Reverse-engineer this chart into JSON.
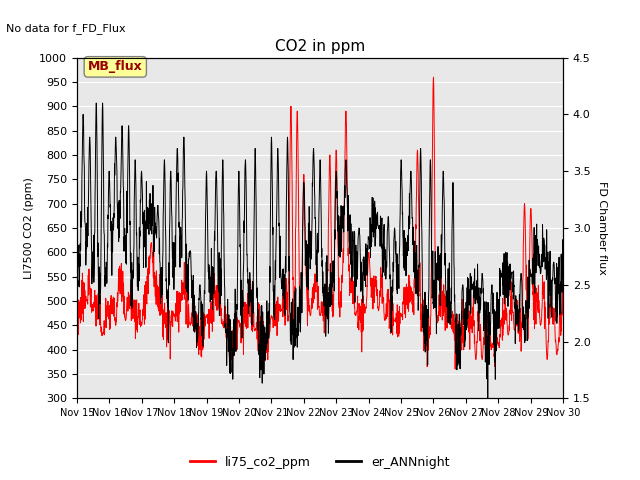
{
  "title": "CO2 in ppm",
  "subtitle": "No data for f_FD_Flux",
  "ylabel_left": "LI7500 CO2 (ppm)",
  "ylabel_right": "FD Chamber flux",
  "ylim_left": [
    300,
    1000
  ],
  "ylim_right": [
    1.5,
    4.5
  ],
  "yticks_left": [
    300,
    350,
    400,
    450,
    500,
    550,
    600,
    650,
    700,
    750,
    800,
    850,
    900,
    950,
    1000
  ],
  "yticks_right": [
    1.5,
    2.0,
    2.5,
    3.0,
    3.5,
    4.0,
    4.5
  ],
  "legend_box_label": "MB_flux",
  "legend_box_color": "#ffff99",
  "legend_box_text_color": "#990000",
  "line1_color": "red",
  "line2_color": "black",
  "line1_label": "li75_co2_ppm",
  "line2_label": "er_ANNnight",
  "x_tick_labels": [
    "Nov 15",
    "Nov 16",
    "Nov 17",
    "Nov 18",
    "Nov 19",
    "Nov 20",
    "Nov 21",
    "Nov 22",
    "Nov 23",
    "Nov 24",
    "Nov 25",
    "Nov 26",
    "Nov 27",
    "Nov 28",
    "Nov 29",
    "Nov 30"
  ],
  "background_color": "#e8e8e8",
  "grid_color": "white"
}
